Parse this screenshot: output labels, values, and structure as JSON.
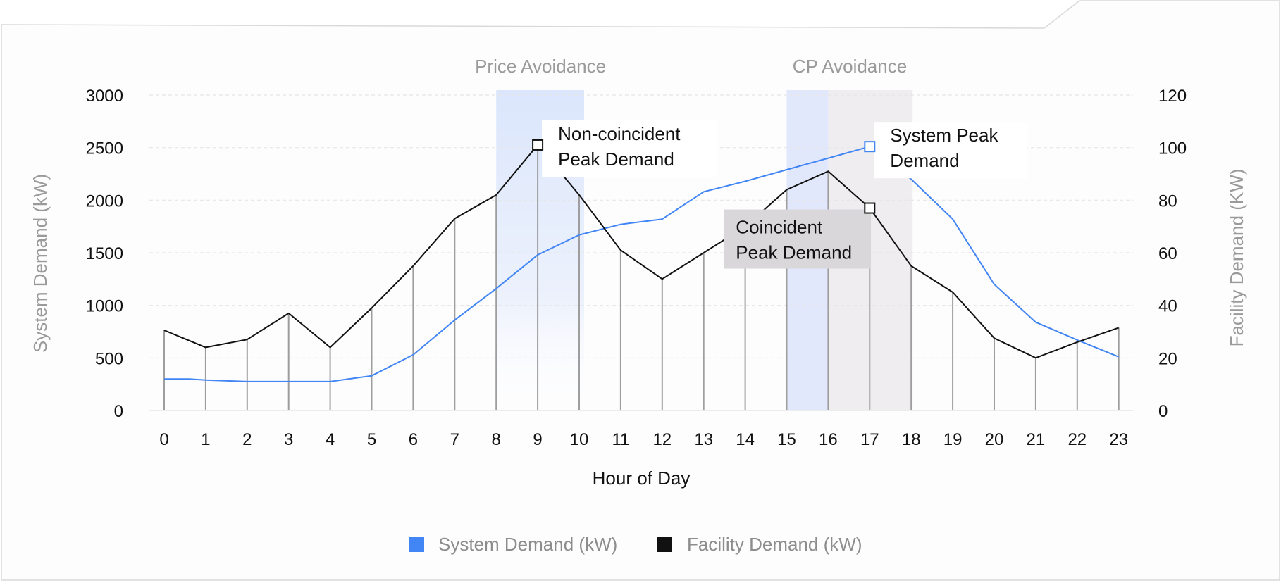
{
  "chart_data": {
    "type": "line",
    "xlabel": "Hour of Day",
    "ylabel_left": "System Demand (kW)",
    "ylabel_right": "Facility Demand (KW)",
    "x": [
      0,
      1,
      2,
      3,
      4,
      5,
      6,
      7,
      8,
      9,
      10,
      11,
      12,
      13,
      14,
      15,
      16,
      17,
      18,
      19,
      20,
      21,
      22,
      23
    ],
    "ylim_left": [
      0,
      3000
    ],
    "yticks_left": [
      "0",
      "500",
      "1000",
      "1500",
      "2000",
      "2500",
      "3000"
    ],
    "ylim_right": [
      0,
      120
    ],
    "yticks_right": [
      "0",
      "20",
      "40",
      "60",
      "80",
      "100",
      "120"
    ],
    "grid": true,
    "legend_position": "bottom",
    "series": [
      {
        "name": "System Demand (kW)",
        "axis": "left",
        "color": "#4285f4",
        "x": [
          0,
          0.6,
          1,
          2,
          3,
          4,
          5,
          6,
          7,
          8,
          9,
          10,
          11,
          12,
          13,
          14,
          15,
          16,
          17,
          18,
          19,
          20,
          21,
          22,
          23
        ],
        "values": [
          300,
          300,
          290,
          275,
          275,
          275,
          330,
          530,
          860,
          1160,
          1480,
          1670,
          1770,
          1820,
          2080,
          2180,
          2290,
          2400,
          2510,
          2200,
          1820,
          1200,
          840,
          670,
          510
        ]
      },
      {
        "name": "Facility Demand (kW)",
        "axis": "right",
        "color": "#111111",
        "x": [
          0,
          1,
          2,
          3,
          4,
          5,
          6,
          7,
          8,
          9,
          10,
          11,
          12,
          13,
          14,
          15,
          16,
          17,
          18,
          19,
          20,
          21,
          22,
          23
        ],
        "values": [
          30.5,
          24,
          27,
          37,
          24,
          39,
          55,
          73,
          82,
          101,
          82,
          61,
          50,
          60,
          70,
          84,
          91,
          77,
          55,
          45,
          27.5,
          20,
          26,
          31.5
        ]
      }
    ],
    "regions": [
      {
        "label": "Price Avoidance",
        "start": 8,
        "end": 10,
        "color": "#dbe6fc"
      },
      {
        "label": "CP Avoidance",
        "start": 15,
        "end": 18,
        "color_blue": "#e1e8fb",
        "color_grey": "#efedf0"
      }
    ],
    "annotations": [
      {
        "lines": [
          "Non-coincident",
          "Peak Demand"
        ],
        "x": 9,
        "value": 101,
        "axis": "right",
        "marker_color": "#111111"
      },
      {
        "lines": [
          "System Peak",
          "Demand"
        ],
        "x": 17,
        "value": 2510,
        "axis": "left",
        "marker_color": "#4285f4"
      },
      {
        "lines": [
          "Coincident",
          "Peak Demand"
        ],
        "x": 17,
        "value": 77,
        "axis": "right",
        "marker_color": "#111111"
      }
    ]
  }
}
